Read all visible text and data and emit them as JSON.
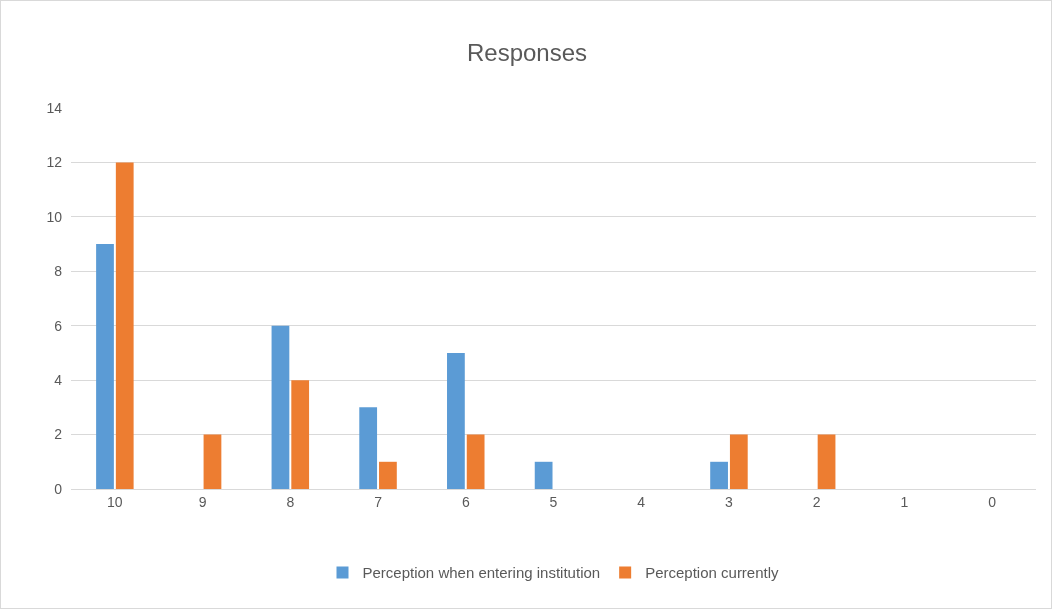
{
  "chart_data": {
    "type": "bar",
    "title": "Responses",
    "categories": [
      "10",
      "9",
      "8",
      "7",
      "6",
      "5",
      "4",
      "3",
      "2",
      "1",
      "0"
    ],
    "series": [
      {
        "name": "Perception when entering institution",
        "color": "#5b9bd5",
        "values": [
          9,
          0,
          6,
          3,
          5,
          1,
          0,
          1,
          0,
          0,
          0
        ]
      },
      {
        "name": "Perception currently",
        "color": "#ed7d31",
        "values": [
          12,
          2,
          4,
          1,
          2,
          0,
          0,
          2,
          2,
          0,
          0
        ]
      }
    ],
    "ylim": [
      0,
      14
    ],
    "yticks": [
      0,
      2,
      4,
      6,
      8,
      10,
      12,
      14
    ],
    "grid": "y",
    "legend": "bottom"
  }
}
